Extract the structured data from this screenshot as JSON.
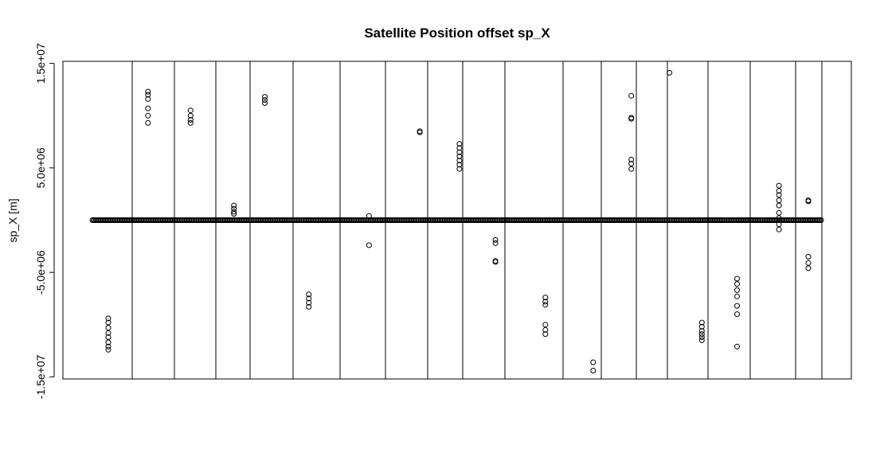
{
  "chart_data": {
    "type": "scatter",
    "title": "Satellite Position offset sp_X",
    "xlabel": "",
    "ylabel": "sp_X [m]",
    "ylim": [
      -15200000,
      15200000
    ],
    "x_range": [
      0,
      1
    ],
    "grid": false,
    "legend": "none",
    "y_ticks": [
      {
        "value": 15000000,
        "label": "1.5e+07"
      },
      {
        "value": 5000000,
        "label": "5.0e+06"
      },
      {
        "value": -5000000,
        "label": "-5.0e+06"
      },
      {
        "value": -15000000,
        "label": "-1.5e+07"
      }
    ],
    "baseline": {
      "y": 0,
      "x_start": 0.04,
      "x_end": 0.96
    },
    "separators": [
      0.095,
      0.142,
      0.189,
      0.228,
      0.277,
      0.33,
      0.382,
      0.435,
      0.476,
      0.535,
      0.588,
      0.634,
      0.697,
      0.732,
      0.779,
      0.841,
      0.892,
      0.921
    ],
    "series": [
      {
        "values": [
          [
            0.063,
            -9400000
          ],
          [
            0.063,
            -9800000
          ],
          [
            0.063,
            -10300000
          ],
          [
            0.063,
            -10800000
          ],
          [
            0.063,
            -11200000
          ],
          [
            0.063,
            -11700000
          ],
          [
            0.063,
            -12100000
          ],
          [
            0.063,
            -12400000
          ],
          [
            0.117,
            12300000
          ],
          [
            0.117,
            12000000
          ],
          [
            0.117,
            11600000
          ],
          [
            0.117,
            10700000
          ],
          [
            0.117,
            10000000
          ],
          [
            0.117,
            9300000
          ],
          [
            0.175,
            10500000
          ],
          [
            0.175,
            10000000
          ],
          [
            0.175,
            9600000
          ],
          [
            0.175,
            9300000
          ],
          [
            0.234,
            1400000
          ],
          [
            0.234,
            1100000
          ],
          [
            0.234,
            800000
          ],
          [
            0.234,
            600000
          ],
          [
            0.276,
            11800000
          ],
          [
            0.276,
            11500000
          ],
          [
            0.276,
            11200000
          ],
          [
            0.336,
            -7100000
          ],
          [
            0.336,
            -7500000
          ],
          [
            0.336,
            -7900000
          ],
          [
            0.336,
            -8300000
          ],
          [
            0.418,
            400000
          ],
          [
            0.418,
            -2400000
          ],
          [
            0.487,
            8500000
          ],
          [
            0.487,
            8400000
          ],
          [
            0.541,
            7300000
          ],
          [
            0.541,
            6900000
          ],
          [
            0.541,
            6500000
          ],
          [
            0.541,
            6100000
          ],
          [
            0.541,
            5700000
          ],
          [
            0.541,
            5300000
          ],
          [
            0.541,
            4900000
          ],
          [
            0.59,
            -1900000
          ],
          [
            0.59,
            -2200000
          ],
          [
            0.59,
            -3900000
          ],
          [
            0.59,
            -4000000
          ],
          [
            0.658,
            -7400000
          ],
          [
            0.658,
            -7800000
          ],
          [
            0.658,
            -8100000
          ],
          [
            0.658,
            -10000000
          ],
          [
            0.658,
            -10500000
          ],
          [
            0.658,
            -10900000
          ],
          [
            0.723,
            -13600000
          ],
          [
            0.723,
            -14400000
          ],
          [
            0.775,
            11900000
          ],
          [
            0.775,
            9800000
          ],
          [
            0.775,
            9700000
          ],
          [
            0.775,
            5800000
          ],
          [
            0.775,
            5400000
          ],
          [
            0.775,
            4900000
          ],
          [
            0.827,
            14100000
          ],
          [
            0.871,
            -9800000
          ],
          [
            0.871,
            -10200000
          ],
          [
            0.871,
            -10600000
          ],
          [
            0.871,
            -10900000
          ],
          [
            0.871,
            -11200000
          ],
          [
            0.871,
            -11500000
          ],
          [
            0.919,
            -5600000
          ],
          [
            0.919,
            -6100000
          ],
          [
            0.919,
            -6700000
          ],
          [
            0.919,
            -7300000
          ],
          [
            0.919,
            -8200000
          ],
          [
            0.919,
            -9000000
          ],
          [
            0.919,
            -12100000
          ],
          [
            0.976,
            3300000
          ],
          [
            0.976,
            2800000
          ],
          [
            0.976,
            2400000
          ],
          [
            0.976,
            1900000
          ],
          [
            0.976,
            1400000
          ],
          [
            0.976,
            700000
          ],
          [
            0.976,
            200000
          ],
          [
            0.976,
            -400000
          ],
          [
            0.976,
            -900000
          ],
          [
            1.016,
            1900000
          ],
          [
            1.016,
            1800000
          ],
          [
            1.016,
            -3500000
          ],
          [
            1.016,
            -4100000
          ],
          [
            1.016,
            -4600000
          ]
        ]
      }
    ]
  }
}
